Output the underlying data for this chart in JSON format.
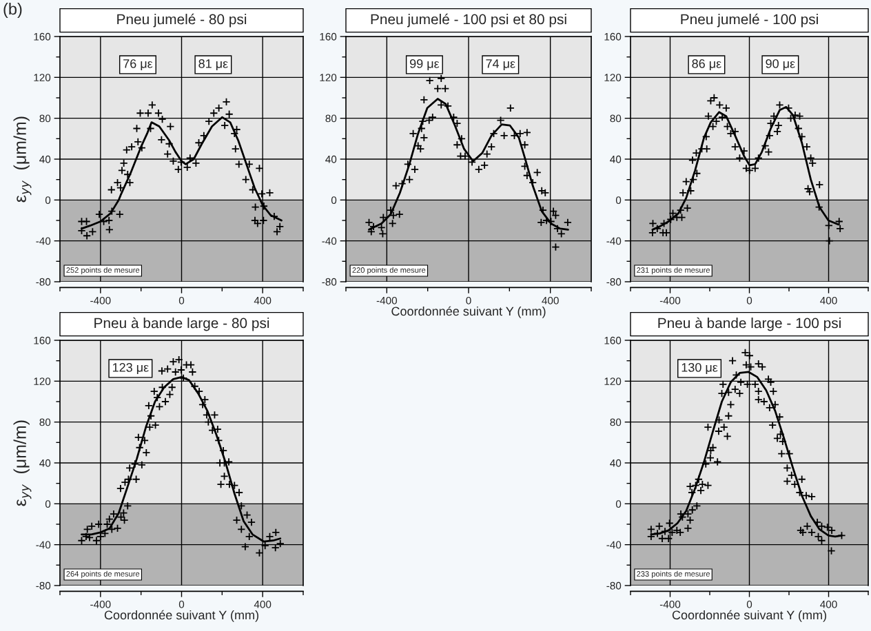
{
  "chart_data": [
    {
      "type": "scatter",
      "subtitle": "(b)",
      "title": "Pneu jumelé - 80 psi",
      "ylabel": "ε$_{yy}$  (μm/m)",
      "xlim": [
        -600,
        600
      ],
      "ylim": [
        -80,
        160
      ],
      "xticks": [
        {
          "value": -600,
          "label": null
        },
        -400,
        {
          "value": -200,
          "label": null
        },
        0,
        {
          "value": 200,
          "label": null
        },
        400,
        {
          "value": 600,
          "label": null
        }
      ],
      "yticks": [
        -80,
        {
          "value": -60,
          "label": null
        },
        -40,
        {
          "value": -20,
          "label": null
        },
        0,
        {
          "value": 20,
          "label": null
        },
        40,
        {
          "value": 60,
          "label": null
        },
        80,
        {
          "value": 100,
          "label": null
        },
        120,
        {
          "value": 140,
          "label": null
        },
        160
      ],
      "grid": true,
      "bands": [
        {
          "axis": "y",
          "from": 0,
          "to": 160,
          "color": "#e6e6e6"
        },
        {
          "axis": "y",
          "from": -80,
          "to": 0,
          "color": "#b3b3b3"
        }
      ],
      "annotations": [
        "76 με",
        "81 με",
        "252 points de mesure"
      ],
      "series": [
        {
          "color": "#000000",
          "marker": "cross",
          "x": [
            -493,
            -469,
            -493,
            -467,
            -439,
            -406,
            -384,
            -356,
            -358,
            -344,
            -305,
            -346,
            -316,
            -301,
            -285,
            -294,
            -271,
            -255,
            -266,
            -246,
            -221,
            -196,
            -204,
            -215,
            -165,
            -145,
            -153,
            -114,
            -95,
            -99,
            -55,
            -61,
            -69,
            -41,
            -16,
            -2,
            28,
            42,
            71,
            85,
            110,
            135,
            159,
            184,
            221,
            235,
            213,
            261,
            272,
            266,
            283,
            334,
            317,
            384,
            351,
            396,
            435,
            364,
            362,
            375,
            406,
            404,
            457,
            471,
            485
          ],
          "values": [
            -21,
            -21,
            -30,
            -35,
            -31,
            -14,
            -21,
            -29,
            -20,
            -11,
            -14,
            10,
            17,
            12,
            36,
            29,
            49,
            17,
            25,
            52,
            70,
            51,
            85,
            57,
            85,
            93,
            70,
            85,
            79,
            59,
            72,
            55,
            45,
            38,
            30,
            37,
            32,
            41,
            36,
            56,
            63,
            77,
            85,
            90,
            96,
            84,
            73,
            65,
            69,
            50,
            35,
            35,
            20,
            31,
            10,
            6,
            7,
            -7,
            -20,
            -23,
            -6,
            -20,
            -16,
            -31,
            -26
          ]
        },
        {
          "type": "line",
          "color": "#000000",
          "marker": "none",
          "line_style": "solid",
          "x": [
            -493,
            -450,
            -400,
            -350,
            -310,
            -300,
            -250,
            -200,
            -170,
            -148,
            -110,
            -60,
            -30,
            0,
            20,
            60,
            100,
            150,
            200,
            240,
            280,
            320,
            360,
            400,
            440,
            493
          ],
          "values": [
            -28,
            -25,
            -21,
            -13,
            0,
            5,
            27,
            52,
            65,
            76,
            72,
            58,
            47,
            38,
            35,
            40,
            55,
            72,
            81,
            76,
            58,
            35,
            12,
            -5,
            -15,
            -20
          ]
        }
      ]
    },
    {
      "type": "scatter",
      "title": "Pneu jumelé - 100 psi et 80 psi",
      "xlabel": "Coordonnée suivant Y (mm)",
      "xlim": [
        -600,
        600
      ],
      "ylim": [
        -80,
        160
      ],
      "xticks": [
        {
          "value": -600,
          "label": null
        },
        -400,
        {
          "value": -200,
          "label": null
        },
        0,
        {
          "value": 200,
          "label": null
        },
        400,
        {
          "value": 600,
          "label": null
        }
      ],
      "yticks": [
        -80,
        {
          "value": -60,
          "label": null
        },
        -40,
        {
          "value": -20,
          "label": null
        },
        0,
        {
          "value": 20,
          "label": null
        },
        40,
        {
          "value": 60,
          "label": null
        },
        80,
        {
          "value": 100,
          "label": null
        },
        120,
        {
          "value": 140,
          "label": null
        },
        160
      ],
      "grid": true,
      "bands": [
        {
          "axis": "y",
          "from": 0,
          "to": 160,
          "color": "#e6e6e6"
        },
        {
          "axis": "y",
          "from": -80,
          "to": 0,
          "color": "#b3b3b3"
        }
      ],
      "annotations": [
        "99 με",
        "74 με",
        "220 points de mesure"
      ],
      "series": [
        {
          "color": "#000000",
          "marker": "cross",
          "x": [
            -487,
            -476,
            -465,
            -420,
            -426,
            -417,
            -381,
            -372,
            -368,
            -338,
            -355,
            -325,
            -297,
            -289,
            -263,
            -271,
            -247,
            -235,
            -218,
            -230,
            -193,
            -224,
            -190,
            -176,
            -218,
            -134,
            -151,
            -114,
            -134,
            -101,
            -73,
            -56,
            -56,
            -34,
            -39,
            -17,
            17,
            50,
            78,
            90,
            112,
            123,
            157,
            205,
            174,
            224,
            252,
            286,
            275,
            275,
            286,
            336,
            314,
            375,
            358,
            364,
            355,
            381,
            415,
            426,
            435,
            454,
            485,
            426,
            403
          ],
          "values": [
            -22,
            -31,
            -26,
            -33,
            -27,
            -17,
            -10,
            -23,
            -15,
            -14,
            14,
            16,
            35,
            20,
            30,
            65,
            53,
            50,
            61,
            70,
            78,
            77,
            117,
            81,
            98,
            119,
            109,
            109,
            93,
            92,
            81,
            75,
            54,
            60,
            43,
            43,
            37,
            30,
            34,
            45,
            52,
            65,
            78,
            90,
            63,
            63,
            65,
            66,
            54,
            33,
            24,
            27,
            17,
            7,
            9,
            -10,
            -22,
            -20,
            -11,
            -15,
            -28,
            -33,
            -22,
            -46,
            -21
          ]
        },
        {
          "type": "line",
          "color": "#000000",
          "marker": "none",
          "line_style": "solid",
          "x": [
            -487,
            -426,
            -381,
            -336,
            -291,
            -247,
            -202,
            -151,
            -112,
            -67,
            -22,
            22,
            67,
            112,
            162,
            202,
            246,
            280,
            314,
            358,
            403,
            448,
            487
          ],
          "values": [
            -29,
            -23,
            -14,
            7,
            34,
            65,
            90,
            99,
            94,
            73,
            50,
            38,
            46,
            63,
            74,
            73,
            61,
            38,
            14,
            -11,
            -23,
            -28,
            -29
          ]
        }
      ]
    },
    {
      "type": "scatter",
      "title": "Pneu jumelé - 100 psi",
      "xlim": [
        -600,
        600
      ],
      "ylim": [
        -80,
        160
      ],
      "xticks": [
        {
          "value": -600,
          "label": null
        },
        -400,
        {
          "value": -200,
          "label": null
        },
        0,
        {
          "value": 200,
          "label": null
        },
        400,
        {
          "value": 600,
          "label": null
        }
      ],
      "yticks": [
        -80,
        {
          "value": -60,
          "label": null
        },
        -40,
        {
          "value": -20,
          "label": null
        },
        0,
        {
          "value": 20,
          "label": null
        },
        40,
        {
          "value": 60,
          "label": null
        },
        80,
        {
          "value": 100,
          "label": null
        },
        120,
        {
          "value": 140,
          "label": null
        },
        160
      ],
      "grid": true,
      "bands": [
        {
          "axis": "y",
          "from": 0,
          "to": 160,
          "color": "#e6e6e6"
        },
        {
          "axis": "y",
          "from": -80,
          "to": 0,
          "color": "#b3b3b3"
        }
      ],
      "annotations": [
        "86 με",
        "90 με",
        "231 points de mesure"
      ],
      "series": [
        {
          "color": "#000000",
          "marker": "cross",
          "x": [
            -489,
            -487,
            -465,
            -436,
            -419,
            -431,
            -397,
            -386,
            -366,
            -341,
            -347,
            -335,
            -313,
            -319,
            -296,
            -283,
            -287,
            -268,
            -265,
            -240,
            -218,
            -215,
            -207,
            -195,
            -184,
            -178,
            -167,
            -150,
            -137,
            -117,
            -111,
            -94,
            -72,
            -72,
            -49,
            -27,
            -16,
            1,
            29,
            46,
            80,
            97,
            102,
            108,
            141,
            124,
            153,
            147,
            198,
            209,
            231,
            248,
            254,
            265,
            290,
            310,
            319,
            304,
            296,
            354,
            352,
            401,
            404,
            453,
            458
          ],
          "values": [
            -32,
            -23,
            -28,
            -32,
            -32,
            -23,
            -19,
            -13,
            -17,
            -17,
            -10,
            7,
            -8,
            18,
            9,
            20,
            39,
            46,
            26,
            50,
            62,
            50,
            82,
            97,
            72,
            100,
            77,
            93,
            81,
            90,
            72,
            65,
            67,
            52,
            41,
            48,
            31,
            29,
            31,
            41,
            53,
            47,
            63,
            75,
            67,
            82,
            93,
            73,
            90,
            80,
            83,
            70,
            82,
            62,
            52,
            41,
            36,
            8,
            11,
            15,
            -7,
            -25,
            -40,
            -21,
            -28
          ]
        },
        {
          "type": "line",
          "color": "#000000",
          "marker": "none",
          "line_style": "solid",
          "x": [
            -489,
            -453,
            -408,
            -358,
            -319,
            -274,
            -229,
            -195,
            -153,
            -117,
            -72,
            -27,
            1,
            29,
            63,
            108,
            153,
            186,
            220,
            265,
            310,
            354,
            399,
            450
          ],
          "values": [
            -29,
            -26,
            -21,
            -13,
            2,
            29,
            61,
            76,
            86,
            82,
            63,
            43,
            34,
            35,
            47,
            70,
            88,
            91,
            83,
            56,
            20,
            -7,
            -20,
            -24
          ]
        }
      ]
    },
    {
      "type": "scatter",
      "title": "Pneu à bande large - 80 psi",
      "xlabel": "Coordonnée suivant Y (mm)",
      "ylabel": "ε$_{yy}$  (μm/m)",
      "xlim": [
        -600,
        600
      ],
      "ylim": [
        -80,
        160
      ],
      "xticks": [
        {
          "value": -600,
          "label": null
        },
        -400,
        {
          "value": -200,
          "label": null
        },
        0,
        {
          "value": 200,
          "label": null
        },
        400,
        {
          "value": 600,
          "label": null
        }
      ],
      "yticks": [
        -80,
        {
          "value": -60,
          "label": null
        },
        -40,
        {
          "value": -20,
          "label": null
        },
        0,
        {
          "value": 20,
          "label": null
        },
        40,
        {
          "value": 60,
          "label": null
        },
        80,
        {
          "value": 100,
          "label": null
        },
        120,
        {
          "value": 140,
          "label": null
        },
        160
      ],
      "grid": true,
      "bands": [
        {
          "axis": "y",
          "from": 0,
          "to": 160,
          "color": "#e6e6e6"
        },
        {
          "axis": "y",
          "from": -80,
          "to": 0,
          "color": "#b3b3b3"
        }
      ],
      "annotations": [
        "123 με",
        "264 points de mesure"
      ],
      "series": [
        {
          "color": "#000000",
          "marker": "cross",
          "x": [
            -493,
            -471,
            -465,
            -443,
            -454,
            -420,
            -409,
            -400,
            -378,
            -367,
            -344,
            -335,
            -356,
            -316,
            -299,
            -282,
            -286,
            -266,
            -301,
            -279,
            -262,
            -256,
            -224,
            -230,
            -213,
            -196,
            -207,
            -182,
            -174,
            -162,
            -157,
            -151,
            -135,
            -129,
            -120,
            -109,
            -97,
            -95,
            -80,
            -69,
            -58,
            -47,
            -41,
            -30,
            -13,
            -2,
            9,
            24,
            46,
            54,
            65,
            87,
            104,
            115,
            124,
            132,
            163,
            152,
            178,
            183,
            206,
            189,
            211,
            233,
            194,
            211,
            236,
            261,
            284,
            295,
            272,
            295,
            323,
            334,
            345,
            314,
            384,
            412,
            435,
            463,
            465,
            487
          ],
          "values": [
            -36,
            -32,
            -25,
            -22,
            -33,
            -36,
            -20,
            -32,
            -29,
            -20,
            -25,
            -10,
            -15,
            -24,
            -13,
            -16,
            -9,
            -2,
            15,
            21,
            24,
            35,
            24,
            39,
            65,
            38,
            55,
            62,
            50,
            96,
            75,
            86,
            110,
            77,
            104,
            95,
            130,
            114,
            100,
            132,
            107,
            114,
            139,
            129,
            141,
            131,
            123,
            136,
            136,
            129,
            115,
            110,
            97,
            102,
            87,
            80,
            87,
            72,
            73,
            62,
            52,
            40,
            40,
            41,
            19,
            27,
            19,
            18,
            11,
            -2,
            -16,
            -25,
            -11,
            -32,
            -18,
            -42,
            -48,
            -41,
            -32,
            -43,
            -28,
            -39
          ]
        },
        {
          "type": "line",
          "color": "#000000",
          "marker": "none",
          "line_style": "solid",
          "x": [
            -493,
            -445,
            -400,
            -355,
            -310,
            -266,
            -221,
            -176,
            -131,
            -86,
            -41,
            0,
            37,
            82,
            127,
            171,
            216,
            261,
            306,
            350,
            406,
            451,
            487
          ],
          "values": [
            -30,
            -30,
            -28,
            -24,
            -9,
            17,
            44,
            75,
            100,
            114,
            122,
            124,
            121,
            108,
            91,
            68,
            41,
            10,
            -17,
            -30,
            -37,
            -36,
            -34
          ]
        }
      ]
    },
    {
      "type": "scatter",
      "title": "Pneu à bande large - 100 psi",
      "xlabel": "Coordonnée suivant Y (mm)",
      "xlim": [
        -600,
        600
      ],
      "ylim": [
        -80,
        160
      ],
      "xticks": [
        {
          "value": -600,
          "label": null
        },
        -400,
        {
          "value": -200,
          "label": null
        },
        0,
        {
          "value": 200,
          "label": null
        },
        400,
        {
          "value": 600,
          "label": null
        }
      ],
      "yticks": [
        -80,
        {
          "value": -60,
          "label": null
        },
        -40,
        {
          "value": -20,
          "label": null
        },
        0,
        {
          "value": 20,
          "label": null
        },
        40,
        {
          "value": 60,
          "label": null
        },
        80,
        {
          "value": 100,
          "label": null
        },
        120,
        {
          "value": 140,
          "label": null
        },
        160
      ],
      "grid": true,
      "bands": [
        {
          "axis": "y",
          "from": 0,
          "to": 160,
          "color": "#e6e6e6"
        },
        {
          "axis": "y",
          "from": -80,
          "to": 0,
          "color": "#b3b3b3"
        }
      ],
      "annotations": [
        "130 με",
        "233 points de mesure"
      ],
      "series": [
        {
          "color": "#000000",
          "marker": "cross",
          "x": [
            -496,
            -496,
            -464,
            -455,
            -440,
            -426,
            -408,
            -403,
            -390,
            -366,
            -349,
            -346,
            -338,
            -310,
            -310,
            -299,
            -288,
            -265,
            -299,
            -290,
            -271,
            -256,
            -245,
            -237,
            -209,
            -220,
            -197,
            -209,
            -195,
            -184,
            -161,
            -155,
            -153,
            -128,
            -111,
            -105,
            -139,
            -133,
            -105,
            -94,
            -85,
            -72,
            -66,
            -49,
            -43,
            -21,
            1,
            -16,
            7,
            -10,
            29,
            46,
            65,
            46,
            46,
            74,
            96,
            102,
            108,
            121,
            130,
            117,
            153,
            141,
            157,
            168,
            163,
            202,
            191,
            191,
            213,
            229,
            265,
            254,
            287,
            315,
            259,
            270,
            292,
            315,
            343,
            365,
            348,
            365,
            394,
            416,
            414,
            466
          ],
          "values": [
            -32,
            -25,
            -29,
            -22,
            -34,
            -27,
            -34,
            -19,
            -28,
            -26,
            -28,
            -10,
            -13,
            -24,
            -10,
            -16,
            -6,
            -2,
            17,
            11,
            18,
            24,
            13,
            19,
            18,
            39,
            45,
            75,
            52,
            55,
            41,
            71,
            82,
            75,
            66,
            86,
            108,
            117,
            109,
            97,
            140,
            112,
            126,
            108,
            119,
            148,
            145,
            136,
            134,
            117,
            117,
            137,
            134,
            110,
            102,
            100,
            122,
            94,
            119,
            110,
            97,
            77,
            85,
            64,
            68,
            61,
            49,
            49,
            35,
            22,
            28,
            19,
            24,
            11,
            8,
            7,
            -26,
            -28,
            -22,
            -28,
            -18,
            -22,
            -32,
            -36,
            -23,
            -26,
            -46,
            -31
          ]
        },
        {
          "type": "line",
          "color": "#000000",
          "marker": "none",
          "line_style": "solid",
          "x": [
            -496,
            -453,
            -408,
            -363,
            -319,
            -274,
            -229,
            -184,
            -139,
            -94,
            -49,
            -4,
            40,
            85,
            130,
            175,
            220,
            265,
            310,
            354,
            399,
            433,
            466
          ],
          "values": [
            -30,
            -29,
            -26,
            -19,
            -7,
            15,
            41,
            71,
            100,
            119,
            128,
            129,
            124,
            111,
            91,
            64,
            35,
            8,
            -12,
            -25,
            -31,
            -32,
            -31
          ]
        }
      ]
    }
  ]
}
